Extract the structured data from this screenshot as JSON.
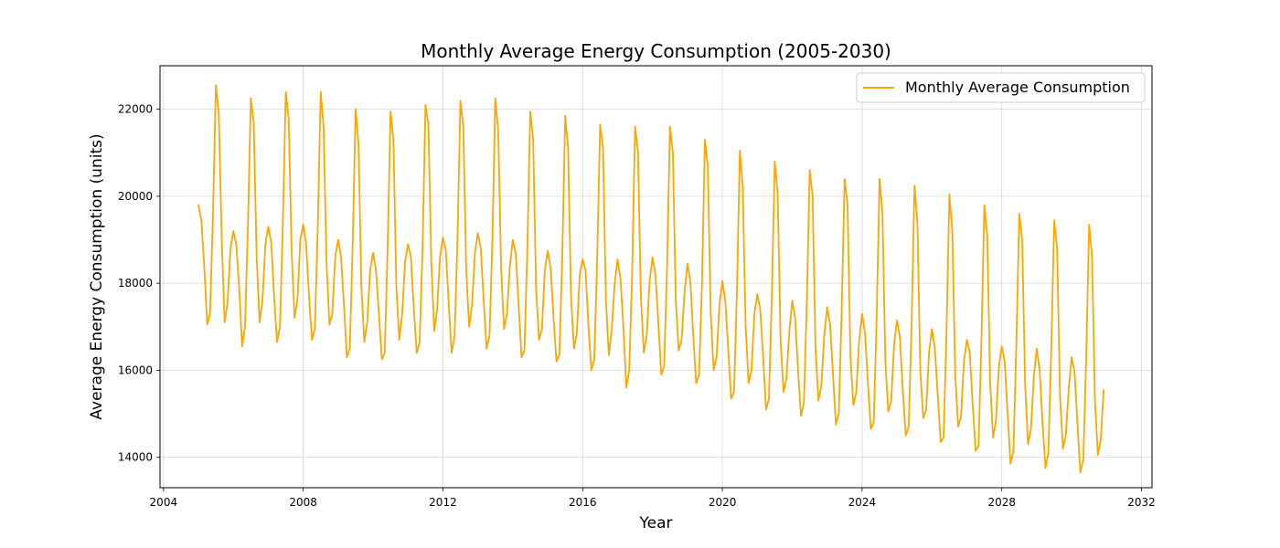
{
  "chart_data": {
    "type": "line",
    "title": "Monthly Average Energy Consumption (2005-2030)",
    "xlabel": "Year",
    "ylabel": "Average Energy Consumption (units)",
    "xlim": [
      2003.9,
      2032.3
    ],
    "ylim": [
      13300,
      23000
    ],
    "xticks": [
      2004,
      2008,
      2012,
      2016,
      2020,
      2024,
      2028,
      2032
    ],
    "yticks": [
      14000,
      16000,
      18000,
      20000,
      22000
    ],
    "grid": true,
    "legend_position": "upper right",
    "color": "#FFA500",
    "series": [
      {
        "name": "Monthly Average Consumption",
        "start_year": 2005,
        "start_month": 1,
        "values": [
          19800,
          19450,
          18400,
          17050,
          17300,
          19600,
          22550,
          21900,
          19000,
          17100,
          17550,
          18800,
          19200,
          18900,
          17900,
          16550,
          17000,
          19300,
          22250,
          21700,
          18600,
          17100,
          17600,
          18900,
          19300,
          18950,
          17700,
          16650,
          17000,
          19350,
          22400,
          21800,
          18800,
          17200,
          17600,
          19000,
          19350,
          18900,
          17700,
          16700,
          16950,
          19300,
          22400,
          21600,
          18500,
          17050,
          17300,
          18600,
          19000,
          18600,
          17500,
          16300,
          16500,
          18900,
          22000,
          21200,
          17900,
          16650,
          17100,
          18300,
          18700,
          18300,
          17300,
          16250,
          16400,
          18800,
          21950,
          21300,
          17900,
          16700,
          17300,
          18500,
          18900,
          18600,
          17400,
          16400,
          16650,
          18800,
          22100,
          21650,
          18500,
          16900,
          17400,
          18600,
          19050,
          18750,
          17500,
          16400,
          16800,
          19000,
          22200,
          21600,
          18300,
          17000,
          17500,
          18700,
          19150,
          18800,
          17600,
          16500,
          16800,
          19000,
          22250,
          21500,
          18300,
          16950,
          17300,
          18400,
          19000,
          18700,
          17500,
          16300,
          16450,
          18800,
          21950,
          21300,
          17900,
          16700,
          16950,
          18300,
          18750,
          18350,
          17200,
          16200,
          16350,
          18600,
          21850,
          21100,
          17700,
          16500,
          16850,
          18200,
          18550,
          18300,
          17000,
          16000,
          16250,
          18600,
          21650,
          21100,
          17600,
          16350,
          16950,
          18000,
          18550,
          18100,
          17000,
          15600,
          16000,
          18200,
          21600,
          21050,
          17700,
          16400,
          16800,
          18050,
          18600,
          18200,
          17100,
          15900,
          16100,
          18400,
          21600,
          21000,
          17600,
          16450,
          16700,
          17800,
          18450,
          18050,
          16800,
          15700,
          15900,
          18000,
          21300,
          20700,
          17300,
          16000,
          16300,
          17500,
          18050,
          17600,
          16500,
          15350,
          15500,
          17800,
          21050,
          20200,
          17000,
          15700,
          16000,
          17300,
          17750,
          17400,
          16300,
          15100,
          15350,
          17700,
          20800,
          20050,
          16700,
          15500,
          15800,
          16900,
          17600,
          17200,
          16000,
          14950,
          15250,
          17500,
          20600,
          20000,
          16500,
          15300,
          15650,
          16800,
          17450,
          17050,
          15900,
          14750,
          15000,
          17400,
          20400,
          19800,
          16300,
          15200,
          15500,
          16700,
          17300,
          16850,
          15700,
          14650,
          14800,
          17200,
          20400,
          19600,
          16200,
          15050,
          15300,
          16600,
          17150,
          16750,
          15500,
          14500,
          14700,
          17000,
          20250,
          19400,
          16000,
          14900,
          15100,
          16400,
          16950,
          16500,
          15400,
          14350,
          14450,
          16900,
          20050,
          19200,
          15900,
          14700,
          14950,
          16200,
          16700,
          16400,
          15200,
          14150,
          14250,
          16700,
          19800,
          19100,
          15700,
          14450,
          14850,
          16100,
          16550,
          16200,
          15000,
          13850,
          14150,
          16600,
          19600,
          19000,
          15700,
          14300,
          14650,
          15850,
          16500,
          16000,
          14800,
          13750,
          14100,
          16500,
          19450,
          18800,
          15400,
          14200,
          14500,
          15600,
          16300,
          15950,
          14750,
          13650,
          13950,
          16300,
          19350,
          18600,
          15300,
          14050,
          14400,
          15550
        ]
      }
    ]
  }
}
